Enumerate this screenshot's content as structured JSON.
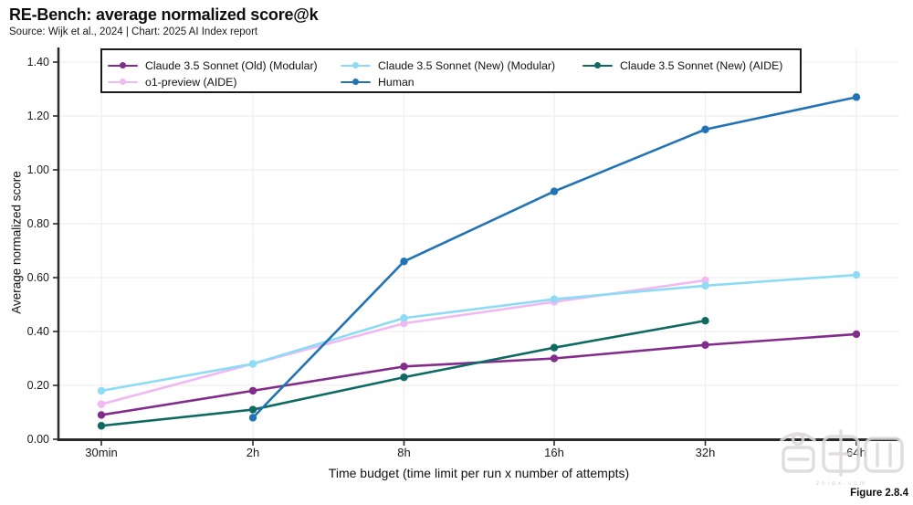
{
  "page": {
    "title": "RE-Bench: average normalized score@k",
    "subtitle": "Source: Wijk et al., 2024 | Chart: 2025 AI Index report",
    "figure_label": "Figure 2.8.4"
  },
  "watermark": {
    "logo_text": "智東西",
    "caption": "zhidx.com"
  },
  "chart_data": {
    "type": "line",
    "title": "RE-Bench: average normalized score@k",
    "source": "Source: Wijk et al., 2024 | Chart: 2025 AI Index report",
    "xlabel": "Time budget (time limit per run x number of attempts)",
    "ylabel": "Average normalized score",
    "categories": [
      "30min",
      "2h",
      "8h",
      "16h",
      "32h",
      "64h"
    ],
    "ylim": [
      0.0,
      1.4
    ],
    "ytick_step": 0.2,
    "ytick_labels": [
      "0.00",
      "0.20",
      "0.40",
      "0.60",
      "0.80",
      "1.00",
      "1.20",
      "1.40"
    ],
    "grid": true,
    "legend_position": "top",
    "series": [
      {
        "name": "Claude 3.5 Sonnet (Old) (Modular)",
        "color": "#822c8c",
        "values": [
          0.09,
          0.18,
          0.27,
          0.3,
          0.35,
          0.39
        ]
      },
      {
        "name": "Claude 3.5 Sonnet (New) (Modular)",
        "color": "#8ddcf6",
        "values": [
          0.18,
          0.28,
          0.45,
          0.52,
          0.57,
          0.61
        ]
      },
      {
        "name": "Claude 3.5 Sonnet (New) (AIDE)",
        "color": "#0f6a63",
        "values": [
          0.05,
          0.11,
          0.23,
          0.34,
          0.44,
          null
        ]
      },
      {
        "name": "o1-preview (AIDE)",
        "color": "#f0b9f2",
        "values": [
          0.13,
          0.28,
          0.43,
          0.51,
          0.59,
          null
        ]
      },
      {
        "name": "Human",
        "color": "#2173b5",
        "values": [
          null,
          0.08,
          0.66,
          0.92,
          1.15,
          1.27
        ]
      }
    ]
  }
}
